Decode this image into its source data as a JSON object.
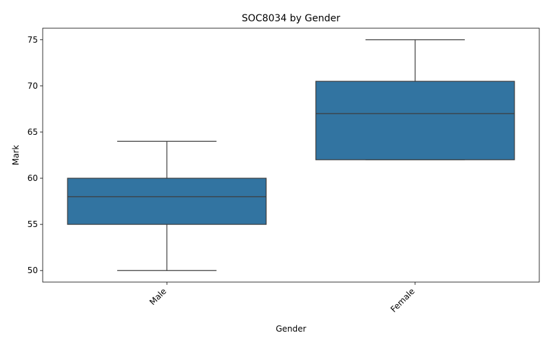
{
  "chart_data": {
    "type": "boxplot",
    "title": "SOC8034 by Gender",
    "xlabel": "Gender",
    "ylabel": "Mark",
    "categories": [
      "Male",
      "Female"
    ],
    "boxes": [
      {
        "category": "Male",
        "whisker_low": 50,
        "q1": 55,
        "median": 58,
        "q3": 60,
        "whisker_high": 64
      },
      {
        "category": "Female",
        "whisker_low": 62,
        "q1": 62,
        "median": 67,
        "q3": 70.5,
        "whisker_high": 75
      }
    ],
    "yticks": [
      50,
      55,
      60,
      65,
      70,
      75
    ],
    "ylim": [
      48.75,
      76.25
    ],
    "xtick_rotation_deg": 45,
    "grid": false,
    "colors": {
      "box_fill": "#3274a1",
      "line": "#3d3d3d"
    }
  }
}
